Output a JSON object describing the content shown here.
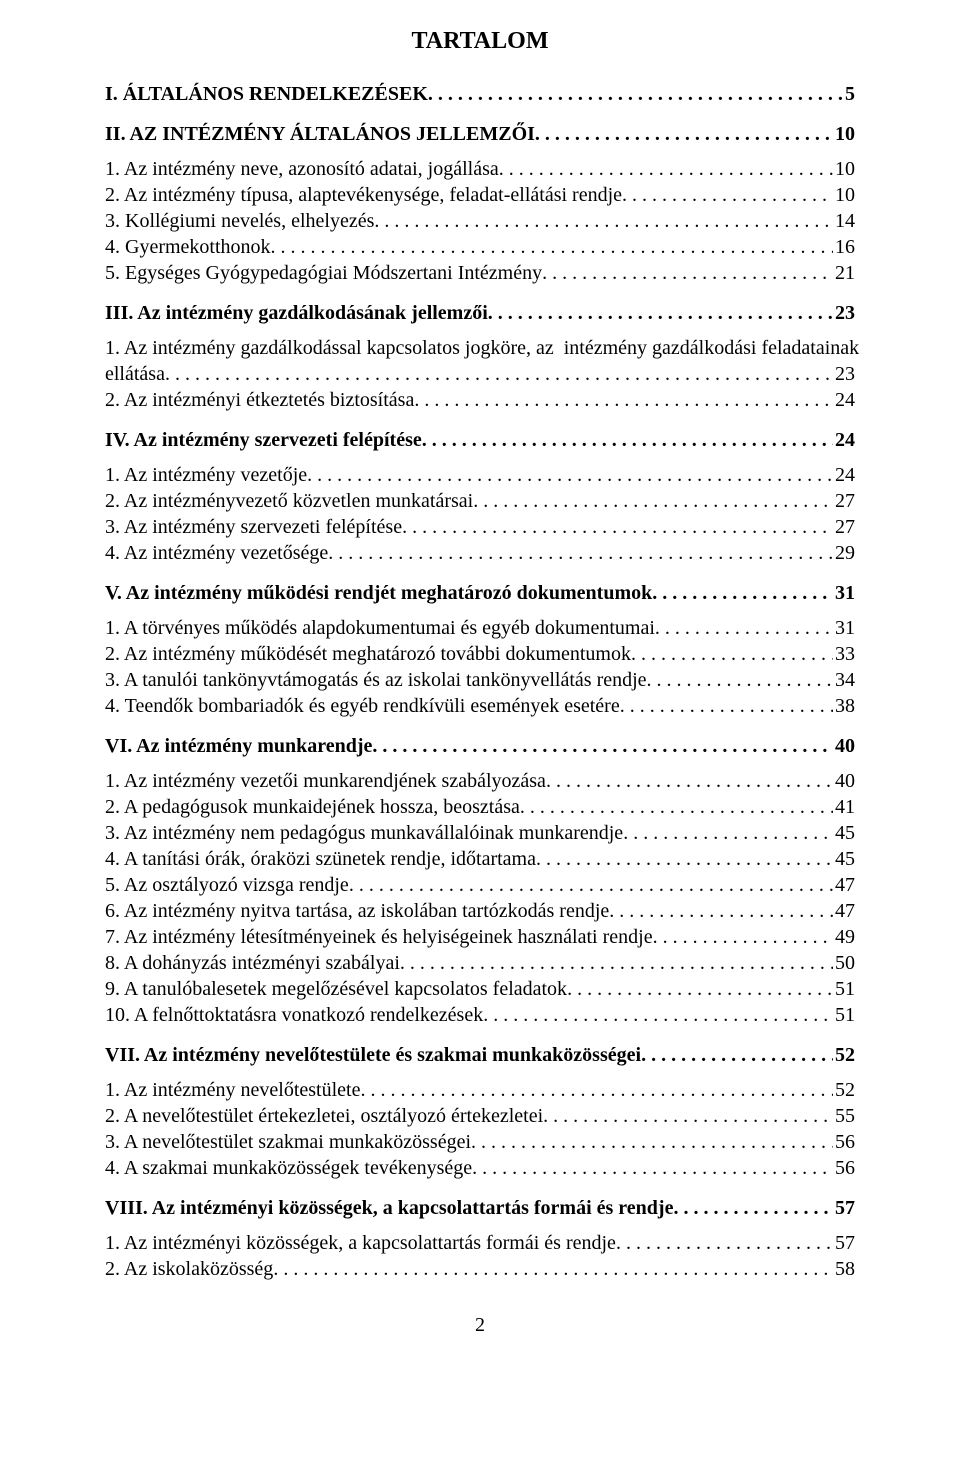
{
  "title": "TARTALOM",
  "page_number": "2",
  "font": {
    "family": "Times New Roman",
    "body_pt": 20,
    "title_pt": 24
  },
  "colors": {
    "text": "#000000",
    "background": "#ffffff"
  },
  "sections": [
    {
      "label": "I. ÁLTALÁNOS RENDELKEZÉSEK",
      "page": "5",
      "bold": true,
      "items": []
    },
    {
      "label": "II. AZ INTÉZMÉNY ÁLTALÁNOS JELLEMZŐI",
      "page": "10",
      "bold": true,
      "items": [
        {
          "label": "1. Az intézmény neve, azonosító adatai, jogállása",
          "page": "10"
        },
        {
          "label": "2. Az intézmény típusa, alaptevékenysége, feladat-ellátási rendje",
          "page": "10"
        },
        {
          "label": "3. Kollégiumi nevelés, elhelyezés",
          "page": "14"
        },
        {
          "label": "4. Gyermekotthonok",
          "page": "16"
        },
        {
          "label": "5. Egységes Gyógypedagógiai Módszertani Intézmény",
          "page": "21"
        }
      ]
    },
    {
      "label": "III. Az intézmény gazdálkodásának jellemzői",
      "page": "23",
      "bold": true,
      "items": [
        {
          "label_lines": [
            "1. Az intézmény gazdálkodással kapcsolatos jogköre, az  intézmény gazdálkodási feladatainak",
            "ellátása"
          ],
          "page": "23"
        },
        {
          "label": "2. Az intézményi étkeztetés biztosítása",
          "page": "24"
        }
      ]
    },
    {
      "label": "IV. Az intézmény szervezeti felépítése",
      "page": "24",
      "bold": true,
      "items": [
        {
          "label": "1. Az intézmény vezetője",
          "page": "24"
        },
        {
          "label": "2. Az intézményvezető közvetlen munkatársai",
          "page": "27"
        },
        {
          "label": "3. Az intézmény szervezeti felépítése",
          "page": "27"
        },
        {
          "label": "4. Az intézmény vezetősége",
          "page": "29"
        }
      ]
    },
    {
      "label": "V. Az intézmény működési rendjét meghatározó dokumentumok",
      "page": "31",
      "bold": true,
      "items": [
        {
          "label": "1. A törvényes működés alapdokumentumai és egyéb dokumentumai",
          "page": "31"
        },
        {
          "label": "2. Az intézmény működését meghatározó további dokumentumok",
          "page": "33"
        },
        {
          "label": "3. A tanulói tankönyvtámogatás és az iskolai tankönyvellátás rendje",
          "page": "34"
        },
        {
          "label": "4. Teendők bombariadók és egyéb rendkívüli események esetére",
          "page": "38"
        }
      ]
    },
    {
      "label": "VI. Az intézmény munkarendje",
      "page": "40",
      "bold": true,
      "items": [
        {
          "label": "1. Az intézmény vezetői munkarendjének szabályozása",
          "page": "40"
        },
        {
          "label": "2. A pedagógusok munkaidejének hossza, beosztása",
          "page": "41"
        },
        {
          "label": "3. Az intézmény nem pedagógus munkavállalóinak munkarendje",
          "page": "45"
        },
        {
          "label": "4. A tanítási órák, óraközi szünetek rendje, időtartama",
          "page": "45"
        },
        {
          "label": "5. Az osztályozó vizsga rendje",
          "page": "47"
        },
        {
          "label": "6. Az intézmény nyitva tartása, az iskolában tartózkodás rendje",
          "page": "47"
        },
        {
          "label": "7. Az intézmény létesítményeinek és helyiségeinek használati rendje",
          "page": "49"
        },
        {
          "label": "8. A dohányzás intézményi szabályai",
          "page": "50"
        },
        {
          "label": "9. A tanulóbalesetek megelőzésével kapcsolatos feladatok",
          "page": "51"
        },
        {
          "label": "10. A felnőttoktatásra vonatkozó rendelkezések",
          "page": "51"
        }
      ]
    },
    {
      "label": "VII. Az intézmény nevelőtestülete és szakmai munkaközösségei",
      "page": "52",
      "bold": true,
      "items": [
        {
          "label": "1. Az intézmény nevelőtestülete",
          "page": "52"
        },
        {
          "label": "2. A nevelőtestület értekezletei, osztályozó értekezletei",
          "page": "55"
        },
        {
          "label": "3. A nevelőtestület szakmai munkaközösségei",
          "page": "56"
        },
        {
          "label": "4. A szakmai munkaközösségek tevékenysége",
          "page": "56"
        }
      ]
    },
    {
      "label": "VIII. Az intézményi közösségek, a kapcsolattartás formái és rendje",
      "page": "57",
      "bold": true,
      "items": [
        {
          "label": "1. Az intézményi közösségek, a kapcsolattartás formái és rendje",
          "page": "57"
        },
        {
          "label": "2. Az iskolaközösség",
          "page": "58"
        }
      ]
    }
  ]
}
